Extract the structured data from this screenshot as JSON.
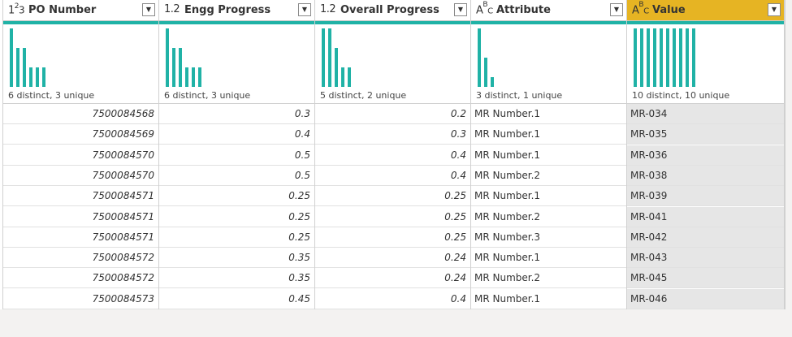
{
  "columns": [
    {
      "type_icon": "1²₃",
      "icon_name": "whole-number-type-icon",
      "title": "PO Number",
      "stats": "6 distinct, 3 unique",
      "histogram": [
        1.0,
        0.66,
        0.66,
        0.33,
        0.33,
        0.33
      ],
      "align": "num",
      "values": [
        "7500084568",
        "7500084569",
        "7500084570",
        "7500084570",
        "7500084571",
        "7500084571",
        "7500084571",
        "7500084572",
        "7500084572",
        "7500084573"
      ]
    },
    {
      "type_icon": "1.2",
      "icon_name": "decimal-type-icon",
      "title": "Engg Progress",
      "stats": "6 distinct, 3 unique",
      "histogram": [
        1.0,
        0.66,
        0.66,
        0.33,
        0.33,
        0.33
      ],
      "align": "num",
      "values": [
        "0.3",
        "0.4",
        "0.5",
        "0.5",
        "0.25",
        "0.25",
        "0.25",
        "0.35",
        "0.35",
        "0.45"
      ]
    },
    {
      "type_icon": "1.2",
      "icon_name": "decimal-type-icon",
      "title": "Overall Progress",
      "stats": "5 distinct, 2 unique",
      "histogram": [
        1.0,
        1.0,
        0.66,
        0.33,
        0.33
      ],
      "align": "num",
      "values": [
        "0.2",
        "0.3",
        "0.4",
        "0.4",
        "0.25",
        "0.25",
        "0.25",
        "0.24",
        "0.24",
        "0.4"
      ]
    },
    {
      "type_icon": "ABC",
      "icon_name": "text-type-icon",
      "title": "Attribute",
      "stats": "3 distinct, 1 unique",
      "histogram": [
        1.0,
        0.5,
        0.17
      ],
      "align": "txt",
      "values": [
        "MR Number.1",
        "MR Number.1",
        "MR Number.1",
        "MR Number.2",
        "MR Number.1",
        "MR Number.2",
        "MR Number.3",
        "MR Number.1",
        "MR Number.2",
        "MR Number.1"
      ]
    },
    {
      "type_icon": "ABC",
      "icon_name": "text-type-icon",
      "title": "Value",
      "stats": "10 distinct, 10 unique",
      "histogram": [
        1,
        1,
        1,
        1,
        1,
        1,
        1,
        1,
        1,
        1
      ],
      "align": "txt",
      "selected": true,
      "values": [
        "MR-034",
        "MR-035",
        "MR-036",
        "MR-038",
        "MR-039",
        "MR-041",
        "MR-042",
        "MR-043",
        "MR-045",
        "MR-046"
      ]
    }
  ],
  "colors": {
    "teal": "#20b2a6",
    "selected_header": "#e6b423",
    "selected_cell": "#e6e6e6"
  }
}
